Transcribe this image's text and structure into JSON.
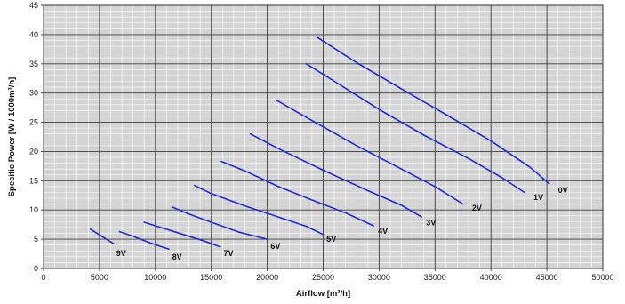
{
  "chart_data": {
    "type": "line",
    "xlabel": "Airflow [m³/h]",
    "ylabel": "Specific Power [W / 1000m³/h]",
    "xlim": [
      0,
      50000
    ],
    "ylim": [
      0,
      45
    ],
    "x_major_ticks": [
      0,
      5000,
      10000,
      15000,
      20000,
      25000,
      30000,
      35000,
      40000,
      45000,
      50000
    ],
    "y_major_ticks": [
      0,
      5,
      10,
      15,
      20,
      25,
      30,
      35,
      40,
      45
    ],
    "x_minor_step": 1000,
    "y_minor_step": 1,
    "grid": true,
    "legend": "inline labels at line ends",
    "colors": {
      "plot_background": "#d4d4d4",
      "minor_grid": "#ffffff",
      "major_grid": "#3a3a3a",
      "line": "#1f2ad6"
    },
    "series": [
      {
        "name": "0V",
        "x": [
          24500,
          28000,
          32000,
          36000,
          40000,
          43500,
          45200
        ],
        "y": [
          39.5,
          35.2,
          30.7,
          26.3,
          21.8,
          17.3,
          14.5
        ],
        "label_at": [
          46000,
          13.4
        ]
      },
      {
        "name": "1V",
        "x": [
          23500,
          26000,
          30000,
          34000,
          38000,
          41000,
          43000
        ],
        "y": [
          35.0,
          32.0,
          27.2,
          22.8,
          18.8,
          15.5,
          13.0
        ],
        "label_at": [
          43800,
          12.2
        ]
      },
      {
        "name": "2V",
        "x": [
          20800,
          24000,
          28000,
          32000,
          35000,
          37500
        ],
        "y": [
          28.8,
          25.3,
          21.0,
          17.0,
          14.0,
          11.0
        ],
        "label_at": [
          38300,
          10.3
        ]
      },
      {
        "name": "3V",
        "x": [
          18500,
          21000,
          25000,
          29000,
          32000,
          33800
        ],
        "y": [
          23.0,
          20.5,
          16.8,
          13.3,
          10.8,
          8.8
        ],
        "label_at": [
          34200,
          7.8
        ]
      },
      {
        "name": "4V",
        "x": [
          15900,
          18000,
          21000,
          24000,
          27000,
          29500
        ],
        "y": [
          18.3,
          16.7,
          14.0,
          11.7,
          9.5,
          7.3
        ],
        "label_at": [
          29900,
          6.4
        ]
      },
      {
        "name": "5V",
        "x": [
          13500,
          15000,
          18000,
          21000,
          23500,
          25000
        ],
        "y": [
          14.2,
          12.8,
          10.7,
          8.8,
          7.2,
          5.8
        ],
        "label_at": [
          25300,
          5.0
        ]
      },
      {
        "name": "6V",
        "x": [
          11500,
          13000,
          15000,
          17500,
          20000
        ],
        "y": [
          10.5,
          9.3,
          7.9,
          6.2,
          5.0
        ],
        "label_at": [
          20300,
          3.8
        ]
      },
      {
        "name": "7V",
        "x": [
          9000,
          10500,
          12500,
          14500,
          15800
        ],
        "y": [
          7.9,
          7.0,
          5.8,
          4.6,
          3.7
        ],
        "label_at": [
          16100,
          2.6
        ]
      },
      {
        "name": "8V",
        "x": [
          6800,
          8000,
          9500,
          11200
        ],
        "y": [
          6.3,
          5.5,
          4.4,
          3.3
        ],
        "label_at": [
          11500,
          2.0
        ]
      },
      {
        "name": "9V",
        "x": [
          4200,
          5200,
          6300
        ],
        "y": [
          6.7,
          5.5,
          4.2
        ],
        "label_at": [
          6500,
          2.6
        ]
      }
    ]
  }
}
